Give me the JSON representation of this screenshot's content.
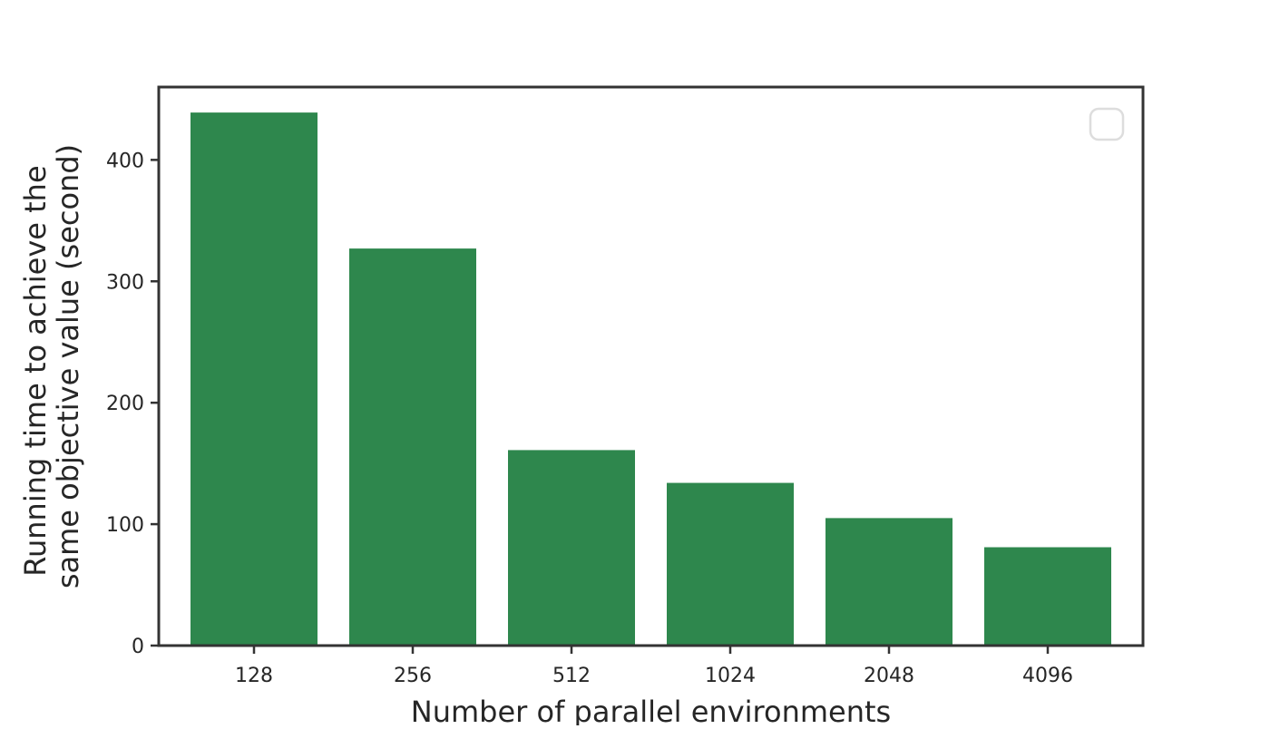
{
  "chart_data": {
    "type": "bar",
    "title": "",
    "xlabel": "Number of parallel environments",
    "ylabel_lines": [
      "Running time to achieve the",
      "same objective value (second)"
    ],
    "categories": [
      "128",
      "256",
      "512",
      "1024",
      "2048",
      "4096"
    ],
    "values": [
      439,
      327,
      161,
      134,
      105,
      81
    ],
    "ylim": [
      0,
      460
    ],
    "yticks": [
      0,
      100,
      200,
      300,
      400
    ],
    "grid": false,
    "legend": {
      "placement": "top-right",
      "entries": []
    },
    "colors": {
      "bar": "#2e874d",
      "axes": "#333333",
      "text": "#262626",
      "legend_border": "#dddddd"
    }
  }
}
